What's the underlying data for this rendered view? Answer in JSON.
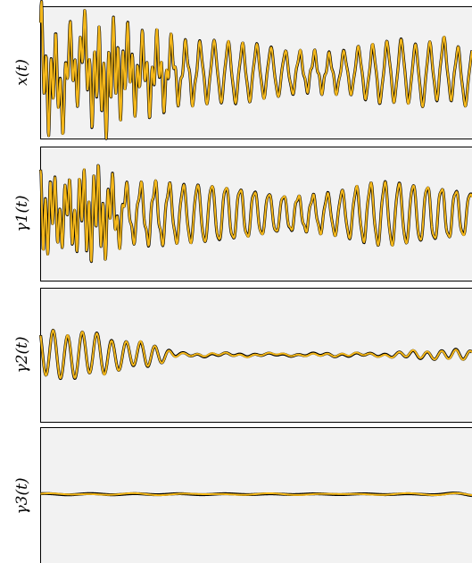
{
  "chart_data": [
    {
      "type": "line",
      "ylabel": "x(t)",
      "grid": false,
      "series": [
        {
          "role": "reference",
          "color": "#000000"
        },
        {
          "role": "estimate",
          "color": "#f5b81a"
        }
      ],
      "amplitude": 1.0,
      "components": [
        {
          "freq": 3.0,
          "amp": [
            0.55,
            0.55,
            0.55,
            0.12,
            0.05,
            0.05,
            0.08,
            0.05,
            0.06,
            0.05
          ]
        },
        {
          "freq": 1.0,
          "amp": [
            0.45,
            0.6,
            0.55,
            0.45,
            0.45,
            0.45,
            0.45,
            0.5,
            0.45,
            0.45
          ]
        },
        {
          "freq": 0.32,
          "amp": [
            0.3,
            0.3,
            0.05,
            0.02,
            0.02,
            0.02,
            0.02,
            0.02,
            0.06,
            0.1
          ]
        }
      ]
    },
    {
      "type": "line",
      "ylabel": "γ1(t)",
      "grid": false,
      "series": [
        {
          "role": "reference",
          "color": "#000000"
        },
        {
          "role": "estimate",
          "color": "#f5b81a"
        }
      ],
      "amplitude": 1.0,
      "components": [
        {
          "freq": 3.0,
          "amp": [
            0.55,
            0.55,
            0.15,
            0.05,
            0.05,
            0.05,
            0.05,
            0.05,
            0.05,
            0.05
          ]
        },
        {
          "freq": 1.0,
          "amp": [
            0.3,
            0.55,
            0.55,
            0.45,
            0.45,
            0.45,
            0.45,
            0.5,
            0.45,
            0.45
          ]
        }
      ]
    },
    {
      "type": "line",
      "ylabel": "γ2(t)",
      "grid": false,
      "series": [
        {
          "role": "reference",
          "color": "#000000"
        },
        {
          "role": "estimate",
          "color": "#f5b81a"
        }
      ],
      "amplitude": 1.0,
      "components": [
        {
          "freq": 1.0,
          "amp": [
            0.45,
            0.55,
            0.25,
            0.02,
            0.02,
            0.02,
            0.03,
            0.02,
            0.06,
            0.1
          ]
        },
        {
          "freq": 0.32,
          "amp": [
            0.05,
            0.05,
            0.02,
            0.02,
            0.02,
            0.02,
            0.02,
            0.02,
            0.02,
            0.02
          ]
        }
      ]
    },
    {
      "type": "line",
      "ylabel": "γ3(t)",
      "grid": false,
      "series": [
        {
          "role": "reference",
          "color": "#000000"
        },
        {
          "role": "estimate",
          "color": "#f5b81a"
        }
      ],
      "amplitude": 1.0,
      "components": [
        {
          "freq": 0.32,
          "amp": [
            0.01,
            0.01,
            0.01,
            0.01,
            0.01,
            0.01,
            0.01,
            0.01,
            0.01,
            0.03
          ]
        }
      ]
    }
  ]
}
